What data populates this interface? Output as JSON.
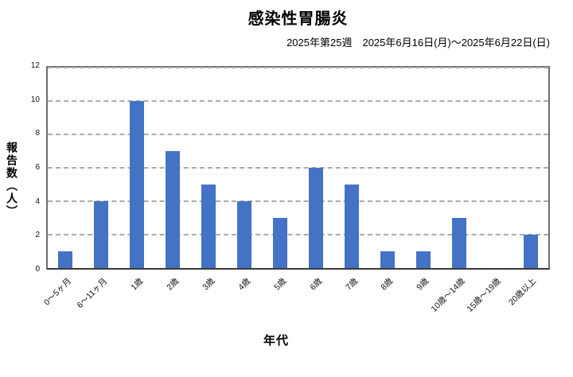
{
  "chart_data": {
    "type": "bar",
    "title": "感染性胃腸炎",
    "subtitle": "2025年第25週　2025年6月16日(月)～2025年6月22日(日)",
    "categories": [
      "0～5ヶ月",
      "6～11ヶ月",
      "1歳",
      "2歳",
      "3歳",
      "4歳",
      "5歳",
      "6歳",
      "7歳",
      "8歳",
      "9歳",
      "10歳～14歳",
      "15歳～19歳",
      "20歳以上"
    ],
    "values": [
      1,
      4,
      10,
      7,
      5,
      4,
      3,
      6,
      5,
      1,
      1,
      3,
      0,
      2
    ],
    "xlabel": "年代",
    "ylabel": "報告数（人）",
    "ylim": [
      0,
      12
    ],
    "y_ticks": [
      0,
      2,
      4,
      6,
      8,
      10,
      12
    ],
    "grid": "horizontal-dashed",
    "legend": "none",
    "x_tick_rotation_deg": 45,
    "bar_color": "#4472C4"
  },
  "colors": {
    "bar": "#4472C4",
    "gridline": "#ababab",
    "plot_border": "#6e6e6e",
    "axis_bottom": "#3a3a3a",
    "text": "#000000"
  }
}
